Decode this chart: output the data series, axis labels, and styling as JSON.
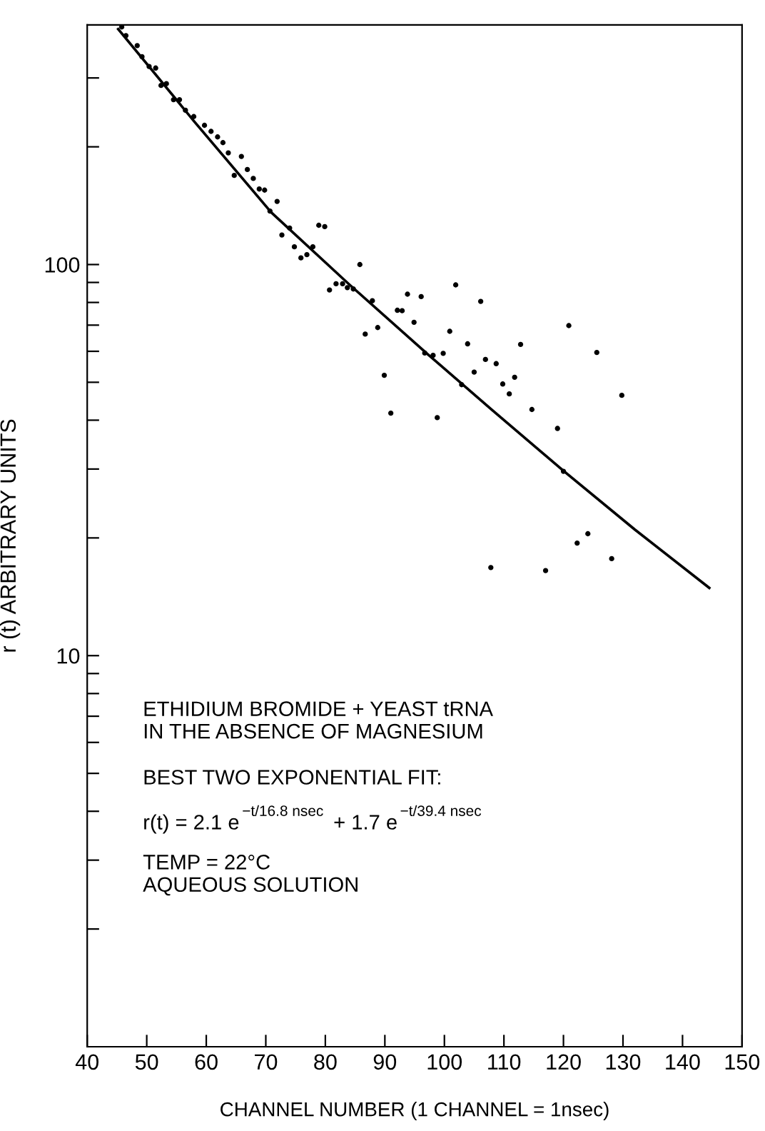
{
  "chart_data": {
    "type": "scatter",
    "xlabel": "CHANNEL NUMBER (1 CHANNEL = 1nsec)",
    "ylabel": "r (t) ARBITRARY UNITS",
    "log": "y",
    "grid": false,
    "legend": false,
    "marker": "circle",
    "xlim": [
      40,
      150
    ],
    "xticks": [
      40,
      50,
      60,
      70,
      80,
      90,
      100,
      110,
      120,
      130,
      140,
      150
    ],
    "ylim": [
      1,
      410
    ],
    "yticks": [
      {
        "value": 2,
        "label": null
      },
      {
        "value": 3,
        "label": null
      },
      {
        "value": 4,
        "label": null
      },
      {
        "value": 5,
        "label": null
      },
      {
        "value": 6,
        "label": null
      },
      {
        "value": 7,
        "label": null
      },
      {
        "value": 8,
        "label": null
      },
      {
        "value": 9,
        "label": null
      },
      10,
      {
        "value": 20,
        "label": null
      },
      {
        "value": 30,
        "label": null
      },
      {
        "value": 40,
        "label": null
      },
      {
        "value": 50,
        "label": null
      },
      {
        "value": 60,
        "label": null
      },
      {
        "value": 70,
        "label": null
      },
      {
        "value": 80,
        "label": null
      },
      {
        "value": 90,
        "label": null
      },
      100,
      {
        "value": 200,
        "label": null
      },
      {
        "value": 300,
        "label": null
      }
    ],
    "annotations": [
      "ETHIDIUM BROMIDE + YEAST tRNA\nIN THE ABSENCE OF MAGNESIUM",
      "BEST TWO EXPONENTIAL FIT:",
      "r(t) = 2.1 e$^{−t/16.8 nsec}$ + 1.7 e$^{−t/39.4 nsec}$",
      "TEMP = 22°C\nAQUEOUS SOLUTION"
    ],
    "series": [
      {
        "color": "#000000",
        "x": [
          45.8,
          46.5,
          48.4,
          49.2,
          50.4,
          51.5,
          52.4,
          53.3,
          54.5,
          55.5,
          56.5,
          57.9,
          59.7,
          60.8,
          61.9,
          62.8,
          63.7,
          64.7,
          65.9,
          66.9,
          67.9,
          68.9,
          69.8,
          70.7,
          71.9,
          72.7,
          74.0,
          74.8,
          75.9,
          76.9,
          77.9,
          78.9,
          79.9,
          80.7,
          81.8,
          82.9,
          83.7,
          84.7,
          85.8,
          86.7,
          87.9,
          88.8,
          89.9,
          91.0,
          92.1,
          92.9,
          93.8,
          94.9,
          96.1,
          96.7,
          98.1,
          98.8,
          99.8,
          100.9,
          101.9,
          102.9,
          103.9,
          105.0,
          106.1,
          106.9,
          107.8,
          108.7,
          109.8,
          110.9,
          111.8,
          112.8,
          114.7,
          117.0,
          119.0,
          120.0,
          120.9,
          122.3,
          124.1,
          125.6,
          128.1,
          129.8
        ],
        "values": [
          405,
          385,
          363,
          340,
          321,
          318,
          287,
          290,
          264,
          264,
          248,
          239,
          227,
          219,
          212,
          205,
          193,
          169,
          189,
          175,
          166,
          156,
          155,
          137,
          145,
          119,
          124,
          111,
          104,
          106,
          111,
          126,
          125,
          86.1,
          89.3,
          89.3,
          87.3,
          86.6,
          100,
          66.4,
          80.8,
          69.0,
          52.1,
          41.7,
          76.4,
          76.2,
          84.0,
          71.2,
          82.8,
          59.4,
          58.6,
          40.6,
          59.3,
          67.5,
          88.7,
          49.3,
          62.7,
          53.1,
          80.5,
          57.2,
          16.8,
          55.8,
          49.5,
          46.7,
          51.5,
          62.5,
          42.6,
          16.5,
          38.1,
          29.6,
          69.8,
          19.4,
          20.5,
          59.6,
          17.7,
          46.3
        ]
      },
      {
        "type": "line",
        "color": "#000000",
        "x": [
          45.2,
          58,
          70.9,
          84,
          97.3,
          108,
          120,
          132,
          144.5
        ],
        "values": [
          400,
          232,
          136,
          89,
          58.8,
          42.5,
          29.7,
          21.0,
          14.9
        ],
        "marker": "none",
        "line_style": "solid"
      }
    ]
  }
}
